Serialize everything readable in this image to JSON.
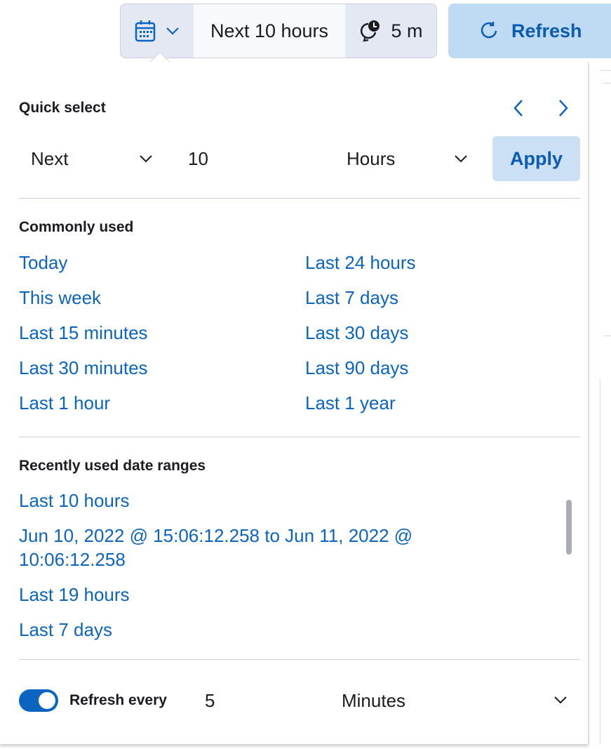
{
  "toolbar": {
    "range_label": "Next 10 hours",
    "interval_label": "5 m",
    "refresh_label": "Refresh"
  },
  "quick_select": {
    "title": "Quick select",
    "direction": "Next",
    "value": "10",
    "unit": "Hours",
    "apply_label": "Apply"
  },
  "commonly_used": {
    "title": "Commonly used",
    "col1": [
      "Today",
      "This week",
      "Last 15 minutes",
      "Last 30 minutes",
      "Last 1 hour"
    ],
    "col2": [
      "Last 24 hours",
      "Last 7 days",
      "Last 30 days",
      "Last 90 days",
      "Last 1 year"
    ]
  },
  "recent": {
    "title": "Recently used date ranges",
    "items": [
      "Last 10 hours",
      "Jun 10, 2022 @ 15:06:12.258 to Jun 11, 2022 @ 10:06:12.258",
      "Last 19 hours",
      "Last 7 days"
    ]
  },
  "refresh_every": {
    "label": "Refresh every",
    "enabled": true,
    "value": "5",
    "unit": "Minutes"
  },
  "colors": {
    "link": "#0b64c0",
    "accent": "#0b5bb3",
    "refresh_bg": "#bfdbf3"
  }
}
